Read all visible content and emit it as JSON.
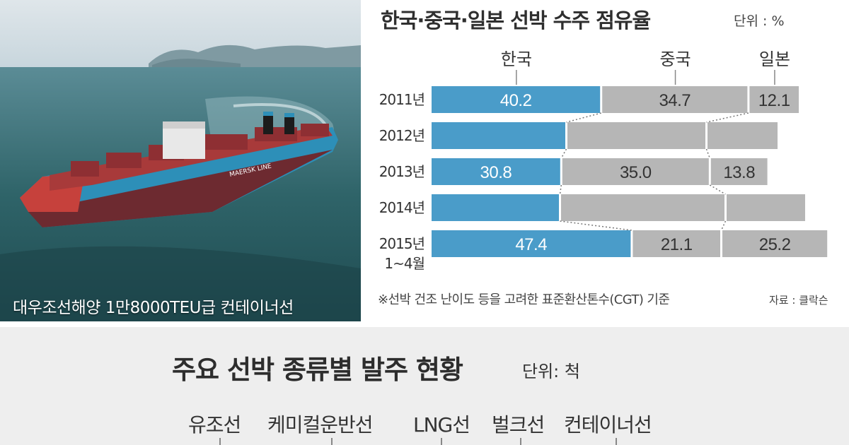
{
  "photo": {
    "caption": "대우조선해양 1만8000TEU급 컨테이너선",
    "hull_text": "MAERSK LINE"
  },
  "chart_data": {
    "type": "bar",
    "title": "한국·중국·일본 선박 수주 점유율",
    "unit": "단위 : %",
    "categories": [
      "2011년",
      "2012년",
      "2013년",
      "2014년",
      "2015년 1~4월"
    ],
    "series": [
      {
        "name": "한국",
        "values": [
          40.2,
          32.0,
          30.8,
          30.5,
          47.4
        ],
        "labels": [
          "40.2",
          "",
          "30.8",
          "",
          "47.4"
        ]
      },
      {
        "name": "중국",
        "values": [
          34.7,
          33.0,
          35.0,
          39.0,
          21.1
        ],
        "labels": [
          "34.7",
          "",
          "35.0",
          "",
          "21.1"
        ]
      },
      {
        "name": "일본",
        "values": [
          12.1,
          17.0,
          13.8,
          19.0,
          25.2
        ],
        "labels": [
          "12.1",
          "",
          "13.8",
          "",
          "25.2"
        ]
      }
    ],
    "stacked": true,
    "footnote": "※선박 건조 난이도 등을 고려한 표준환산톤수(CGT) 기준",
    "source": "자료 : 클락슨",
    "colors": {
      "korea": "#4a9cc9",
      "other": "#b6b6b6"
    }
  },
  "bottom": {
    "title": "주요 선박 종류별 발주 현황",
    "unit": "단위: 척",
    "ship_types": [
      "유조선",
      "케미컬운반선",
      "LNG선",
      "벌크선",
      "컨테이너선"
    ]
  }
}
